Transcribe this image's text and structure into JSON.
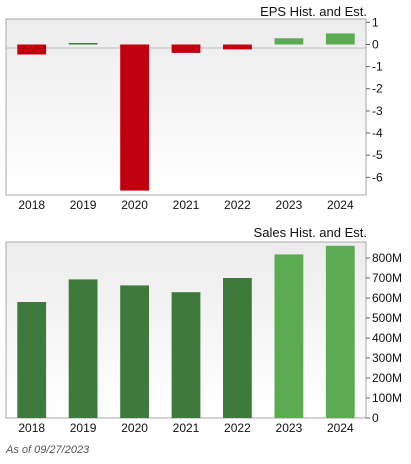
{
  "as_of": "As of 09/27/2023",
  "chart_data": [
    {
      "type": "bar",
      "title": "EPS Hist. and Est.",
      "categories": [
        "2018",
        "2019",
        "2020",
        "2021",
        "2022",
        "2023",
        "2024"
      ],
      "values": [
        -0.45,
        0.02,
        -6.6,
        -0.38,
        -0.22,
        0.28,
        0.5
      ],
      "estimate": [
        false,
        false,
        false,
        false,
        false,
        true,
        true
      ],
      "ylim": [
        -6.8,
        1.15
      ],
      "yticks": [
        1,
        0,
        -1,
        -2,
        -3,
        -4,
        -5,
        -6
      ],
      "ytick_labels": [
        "1",
        "0",
        "-1",
        "-2",
        "-3",
        "-4",
        "-5",
        "-6"
      ],
      "xlabel": "",
      "ylabel": "",
      "grid": false,
      "colors": {
        "negative": "#c0000f",
        "positive_hist": "#3e7a3b",
        "positive_est": "#5aab52"
      }
    },
    {
      "type": "bar",
      "title": "Sales Hist. and Est.",
      "categories": [
        "2018",
        "2019",
        "2020",
        "2021",
        "2022",
        "2023",
        "2024"
      ],
      "values": [
        580,
        693,
        663,
        629,
        700,
        818,
        861
      ],
      "estimate": [
        false,
        false,
        false,
        false,
        false,
        true,
        true
      ],
      "ylim": [
        0,
        880
      ],
      "yticks": [
        0,
        100,
        200,
        300,
        400,
        500,
        600,
        700,
        800
      ],
      "ytick_labels": [
        "0",
        "100M",
        "200M",
        "300M",
        "400M",
        "500M",
        "600M",
        "700M",
        "800M"
      ],
      "xlabel": "",
      "ylabel": "",
      "grid": false,
      "colors": {
        "positive_hist": "#3e7a3b",
        "positive_est": "#5aab52"
      }
    }
  ]
}
